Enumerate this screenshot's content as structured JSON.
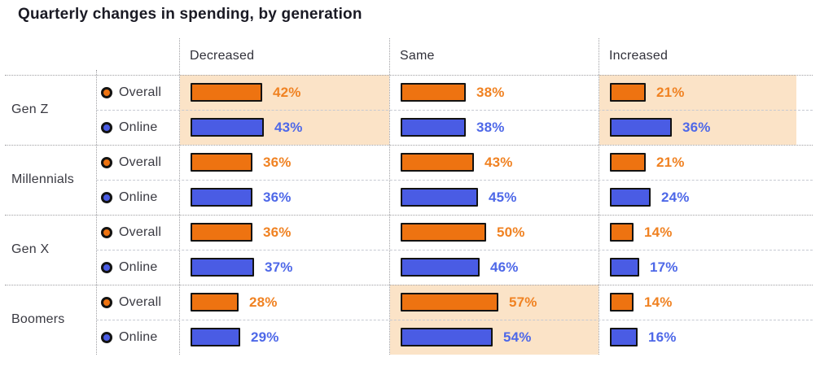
{
  "title": "Quarterly changes in spending, by generation",
  "colors": {
    "overall_bar": "#ee7311",
    "overall_text": "#f08222",
    "online_bar": "#4a5ce4",
    "online_text": "#4e68e8",
    "bar_border": "#131313",
    "highlight_bg": "#fbe3c7",
    "grid_dotted": "#9f9fa3",
    "grid_dashed": "#c6c9d2",
    "label_text": "#3a3a42",
    "header_text": "#31313a",
    "title_text": "#1a1a24"
  },
  "chart_data": {
    "type": "bar",
    "title": "Quarterly changes in spending, by generation",
    "unit": "percent",
    "xlim": [
      0,
      100
    ],
    "grid": "dotted table grid",
    "legend_position": "inline row labels",
    "columns": [
      "Decreased",
      "Same",
      "Increased"
    ],
    "series_labels": [
      "Overall",
      "Online"
    ],
    "rows": [
      {
        "generation": "Gen Z",
        "overall": [
          42,
          38,
          21
        ],
        "online": [
          43,
          38,
          36
        ],
        "highlighted_columns": [
          "Decreased",
          "Increased"
        ]
      },
      {
        "generation": "Millennials",
        "overall": [
          36,
          43,
          21
        ],
        "online": [
          36,
          45,
          24
        ],
        "highlighted_columns": []
      },
      {
        "generation": "Gen X",
        "overall": [
          36,
          50,
          14
        ],
        "online": [
          37,
          46,
          17
        ],
        "highlighted_columns": []
      },
      {
        "generation": "Boomers",
        "overall": [
          28,
          57,
          14
        ],
        "online": [
          29,
          54,
          16
        ],
        "highlighted_columns": [
          "Same"
        ]
      }
    ]
  }
}
